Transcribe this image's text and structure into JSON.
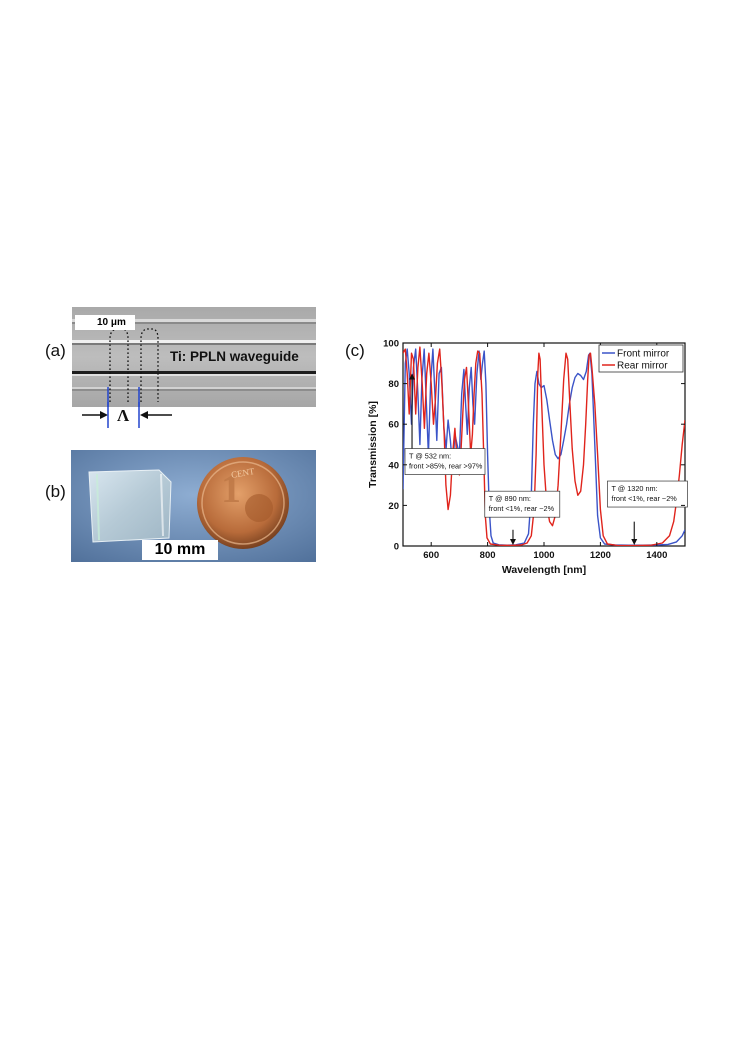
{
  "panels": {
    "a": {
      "label": "(a)",
      "scale_text": "10 μm",
      "waveguide_text": "Ti: PPLN waveguide",
      "period_symbol": "Λ"
    },
    "b": {
      "label": "(b)",
      "scale_text": "10 mm",
      "coin_text": "CENT"
    },
    "c": {
      "label": "(c)"
    }
  },
  "colors": {
    "front": "#3b54c8",
    "rear": "#e0241c"
  },
  "chart_data": {
    "type": "line",
    "xlabel": "Wavelength [nm]",
    "ylabel": "Transmission [%]",
    "xlim": [
      500,
      1500
    ],
    "ylim": [
      0,
      100
    ],
    "xticks": [
      600,
      800,
      1000,
      1200,
      1400
    ],
    "yticks": [
      0,
      20,
      40,
      60,
      80,
      100
    ],
    "legend_position": "top-right",
    "series": [
      {
        "name": "Front mirror",
        "color": "#3b54c8",
        "points": [
          [
            500,
            28
          ],
          [
            508,
            90
          ],
          [
            515,
            97
          ],
          [
            522,
            85
          ],
          [
            530,
            60
          ],
          [
            537,
            88
          ],
          [
            545,
            97
          ],
          [
            553,
            75
          ],
          [
            560,
            50
          ],
          [
            567,
            82
          ],
          [
            575,
            97
          ],
          [
            583,
            70
          ],
          [
            590,
            45
          ],
          [
            598,
            80
          ],
          [
            606,
            97
          ],
          [
            613,
            75
          ],
          [
            620,
            52
          ],
          [
            628,
            85
          ],
          [
            636,
            88
          ],
          [
            645,
            58
          ],
          [
            653,
            48
          ],
          [
            660,
            62
          ],
          [
            668,
            52
          ],
          [
            676,
            38
          ],
          [
            684,
            55
          ],
          [
            692,
            50
          ],
          [
            700,
            45
          ],
          [
            708,
            75
          ],
          [
            716,
            87
          ],
          [
            722,
            70
          ],
          [
            728,
            55
          ],
          [
            735,
            78
          ],
          [
            742,
            88
          ],
          [
            748,
            70
          ],
          [
            754,
            60
          ],
          [
            762,
            85
          ],
          [
            770,
            96
          ],
          [
            776,
            82
          ],
          [
            782,
            90
          ],
          [
            788,
            96
          ],
          [
            794,
            80
          ],
          [
            800,
            45
          ],
          [
            806,
            18
          ],
          [
            812,
            5
          ],
          [
            820,
            1.5
          ],
          [
            840,
            0.6
          ],
          [
            870,
            0.4
          ],
          [
            900,
            0.6
          ],
          [
            930,
            1.5
          ],
          [
            945,
            6
          ],
          [
            955,
            25
          ],
          [
            962,
            60
          ],
          [
            968,
            80
          ],
          [
            975,
            86
          ],
          [
            982,
            80
          ],
          [
            990,
            78
          ],
          [
            1000,
            79
          ],
          [
            1010,
            72
          ],
          [
            1020,
            62
          ],
          [
            1030,
            52
          ],
          [
            1040,
            45
          ],
          [
            1050,
            43
          ],
          [
            1060,
            45
          ],
          [
            1070,
            52
          ],
          [
            1080,
            60
          ],
          [
            1090,
            70
          ],
          [
            1100,
            78
          ],
          [
            1110,
            83
          ],
          [
            1120,
            85
          ],
          [
            1130,
            84
          ],
          [
            1140,
            82
          ],
          [
            1150,
            86
          ],
          [
            1158,
            94
          ],
          [
            1163,
            95
          ],
          [
            1170,
            85
          ],
          [
            1180,
            50
          ],
          [
            1190,
            15
          ],
          [
            1200,
            4
          ],
          [
            1215,
            1
          ],
          [
            1250,
            0.5
          ],
          [
            1300,
            0.4
          ],
          [
            1350,
            0.4
          ],
          [
            1400,
            0.5
          ],
          [
            1440,
            0.8
          ],
          [
            1470,
            2
          ],
          [
            1490,
            5
          ],
          [
            1500,
            8
          ]
        ]
      },
      {
        "name": "Rear mirror",
        "color": "#e0241c",
        "points": [
          [
            500,
            95
          ],
          [
            508,
            97
          ],
          [
            515,
            85
          ],
          [
            522,
            65
          ],
          [
            530,
            95
          ],
          [
            537,
            92
          ],
          [
            545,
            65
          ],
          [
            553,
            88
          ],
          [
            560,
            98
          ],
          [
            568,
            80
          ],
          [
            576,
            58
          ],
          [
            584,
            85
          ],
          [
            592,
            95
          ],
          [
            600,
            80
          ],
          [
            608,
            60
          ],
          [
            615,
            72
          ],
          [
            622,
            90
          ],
          [
            630,
            97
          ],
          [
            638,
            80
          ],
          [
            646,
            55
          ],
          [
            652,
            30
          ],
          [
            660,
            18
          ],
          [
            668,
            25
          ],
          [
            676,
            45
          ],
          [
            684,
            58
          ],
          [
            692,
            42
          ],
          [
            700,
            35
          ],
          [
            706,
            48
          ],
          [
            712,
            65
          ],
          [
            718,
            82
          ],
          [
            725,
            88
          ],
          [
            732,
            70
          ],
          [
            740,
            45
          ],
          [
            746,
            55
          ],
          [
            752,
            75
          ],
          [
            758,
            90
          ],
          [
            765,
            96
          ],
          [
            772,
            95
          ],
          [
            780,
            75
          ],
          [
            786,
            45
          ],
          [
            792,
            15
          ],
          [
            798,
            4
          ],
          [
            810,
            1
          ],
          [
            840,
            0.4
          ],
          [
            880,
            0.3
          ],
          [
            920,
            0.5
          ],
          [
            940,
            1.5
          ],
          [
            955,
            5
          ],
          [
            965,
            18
          ],
          [
            972,
            45
          ],
          [
            978,
            85
          ],
          [
            982,
            95
          ],
          [
            986,
            92
          ],
          [
            992,
            70
          ],
          [
            1000,
            40
          ],
          [
            1010,
            20
          ],
          [
            1020,
            12
          ],
          [
            1030,
            10
          ],
          [
            1040,
            15
          ],
          [
            1050,
            30
          ],
          [
            1060,
            55
          ],
          [
            1070,
            82
          ],
          [
            1078,
            95
          ],
          [
            1084,
            92
          ],
          [
            1092,
            70
          ],
          [
            1100,
            48
          ],
          [
            1110,
            32
          ],
          [
            1120,
            25
          ],
          [
            1130,
            27
          ],
          [
            1140,
            40
          ],
          [
            1148,
            60
          ],
          [
            1155,
            82
          ],
          [
            1160,
            94
          ],
          [
            1165,
            95
          ],
          [
            1170,
            88
          ],
          [
            1180,
            70
          ],
          [
            1190,
            45
          ],
          [
            1200,
            18
          ],
          [
            1210,
            5
          ],
          [
            1225,
            1
          ],
          [
            1260,
            0.3
          ],
          [
            1320,
            0.2
          ],
          [
            1380,
            0.4
          ],
          [
            1420,
            1.5
          ],
          [
            1445,
            5
          ],
          [
            1460,
            12
          ],
          [
            1470,
            22
          ],
          [
            1480,
            35
          ],
          [
            1490,
            50
          ],
          [
            1500,
            62
          ]
        ]
      }
    ],
    "annotations": [
      {
        "lines": [
          "T @ 532 nm:",
          "front >85%, rear >97%"
        ],
        "arrow_x": 532,
        "arrow_from_y": 37,
        "arrow_to_y": 85
      },
      {
        "lines": [
          "T @ 890 nm:",
          "front <1%, rear ~2%"
        ],
        "arrow_x": 890,
        "arrow_from_y": 8,
        "arrow_to_y": 0.5
      },
      {
        "lines": [
          "T @ 1320 nm:",
          "front <1%, rear ~2%"
        ],
        "arrow_x": 1320,
        "arrow_from_y": 12,
        "arrow_to_y": 0.5
      }
    ]
  }
}
